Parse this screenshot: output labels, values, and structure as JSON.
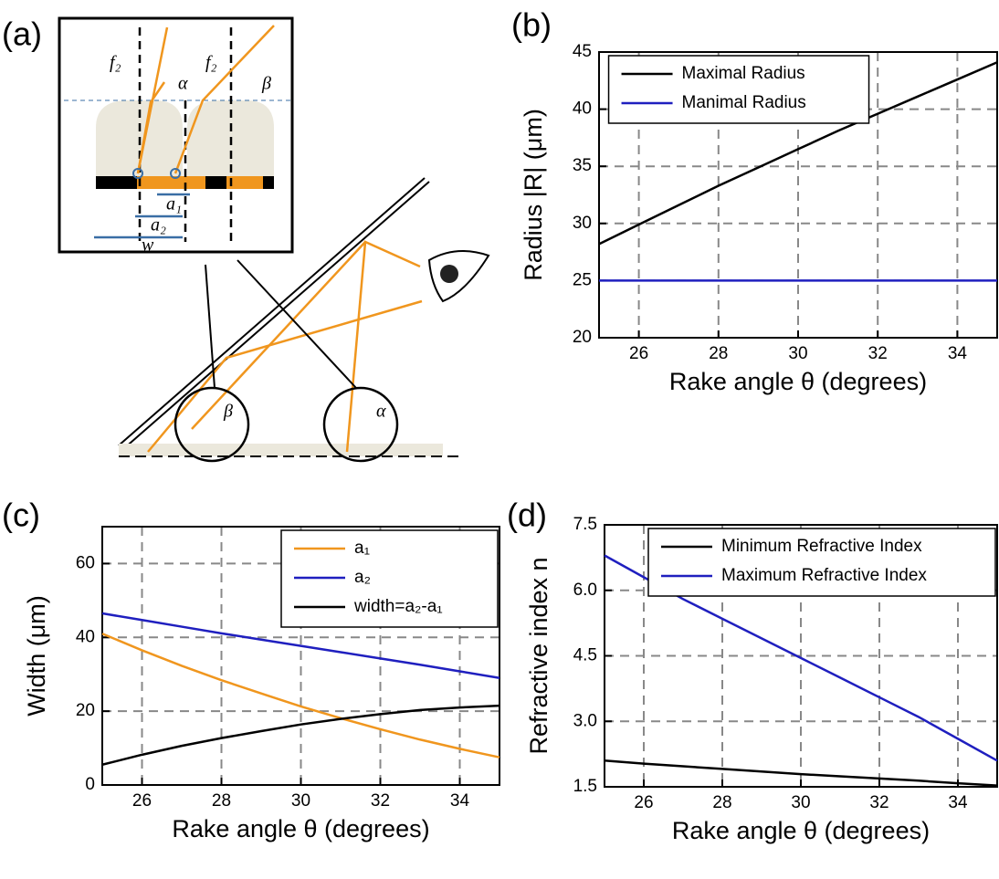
{
  "diagram": {
    "panel_label": "(a)",
    "labels": [
      "f₂",
      "f₂",
      "α",
      "β",
      "a₁",
      "a₂",
      "w",
      "β",
      "α"
    ]
  },
  "chart_data": [
    {
      "type": "line",
      "panel_label": "(b)",
      "xlabel": "Rake angle θ (degrees)",
      "ylabel": "Radius |R| (μm)",
      "x": [
        25,
        26,
        27,
        28,
        29,
        30,
        31,
        32,
        33,
        34,
        35
      ],
      "xlim": [
        25,
        35
      ],
      "xticks": [
        26,
        28,
        30,
        32,
        34
      ],
      "ylim": [
        20,
        45
      ],
      "yticks": [
        20,
        25,
        30,
        35,
        40,
        45
      ],
      "grid": true,
      "legend": "upper left",
      "series": [
        {
          "name": "Maximal Radius",
          "color": "#000000",
          "values": [
            28.2,
            29.9,
            31.6,
            33.3,
            34.9,
            36.5,
            38.1,
            39.6,
            41.1,
            42.6,
            44.1
          ]
        },
        {
          "name": "Manimal Radius",
          "color": "#1f1fbf",
          "values": [
            25,
            25,
            25,
            25,
            25,
            25,
            25,
            25,
            25,
            25,
            25
          ]
        }
      ]
    },
    {
      "type": "line",
      "panel_label": "(c)",
      "xlabel": "Rake angle θ (degrees)",
      "ylabel": "Width (μm)",
      "x": [
        25,
        26,
        27,
        28,
        29,
        30,
        31,
        32,
        33,
        34,
        35
      ],
      "xlim": [
        25,
        35
      ],
      "xticks": [
        26,
        28,
        30,
        32,
        34
      ],
      "ylim": [
        0,
        70
      ],
      "yticks": [
        0,
        20,
        40,
        60
      ],
      "grid": true,
      "legend": "upper right",
      "series": [
        {
          "name": "a₁",
          "color": "#f0961e",
          "values": [
            41,
            36.5,
            32.3,
            28.4,
            24.8,
            21.3,
            18.1,
            15.1,
            12.3,
            9.8,
            7.5
          ]
        },
        {
          "name": "a₂",
          "color": "#1f1fbf",
          "values": [
            46.5,
            44.7,
            42.9,
            41.1,
            39.4,
            37.7,
            36,
            34.3,
            32.6,
            30.8,
            29
          ]
        },
        {
          "name": "width=a₂-a₁",
          "color": "#000000",
          "values": [
            5.5,
            8.2,
            10.6,
            12.7,
            14.6,
            16.4,
            17.9,
            19.2,
            20.3,
            21,
            21.5
          ]
        }
      ]
    },
    {
      "type": "line",
      "panel_label": "(d)",
      "xlabel": "Rake angle θ (degrees)",
      "ylabel": "Refractive index n",
      "x": [
        25,
        26,
        27,
        28,
        29,
        30,
        31,
        32,
        33,
        34,
        35
      ],
      "xlim": [
        25,
        35
      ],
      "xticks": [
        26,
        28,
        30,
        32,
        34
      ],
      "ylim": [
        1.5,
        7.5
      ],
      "yticks": [
        1.5,
        {
          "value": 3,
          "label": "3.0"
        },
        4.5,
        {
          "value": 6,
          "label": "6.0"
        },
        7.5
      ],
      "grid": true,
      "legend": "upper right",
      "series": [
        {
          "name": "Minimum Refractive Index",
          "color": "#000000",
          "values": [
            2.1,
            2.03,
            1.97,
            1.91,
            1.85,
            1.79,
            1.74,
            1.69,
            1.64,
            1.58,
            1.53
          ]
        },
        {
          "name": "Maximum Refractive Index",
          "color": "#1f1fbf",
          "values": [
            6.8,
            6.3,
            5.8,
            5.35,
            4.9,
            4.45,
            4,
            3.55,
            3.1,
            2.6,
            2.1
          ]
        }
      ]
    }
  ]
}
